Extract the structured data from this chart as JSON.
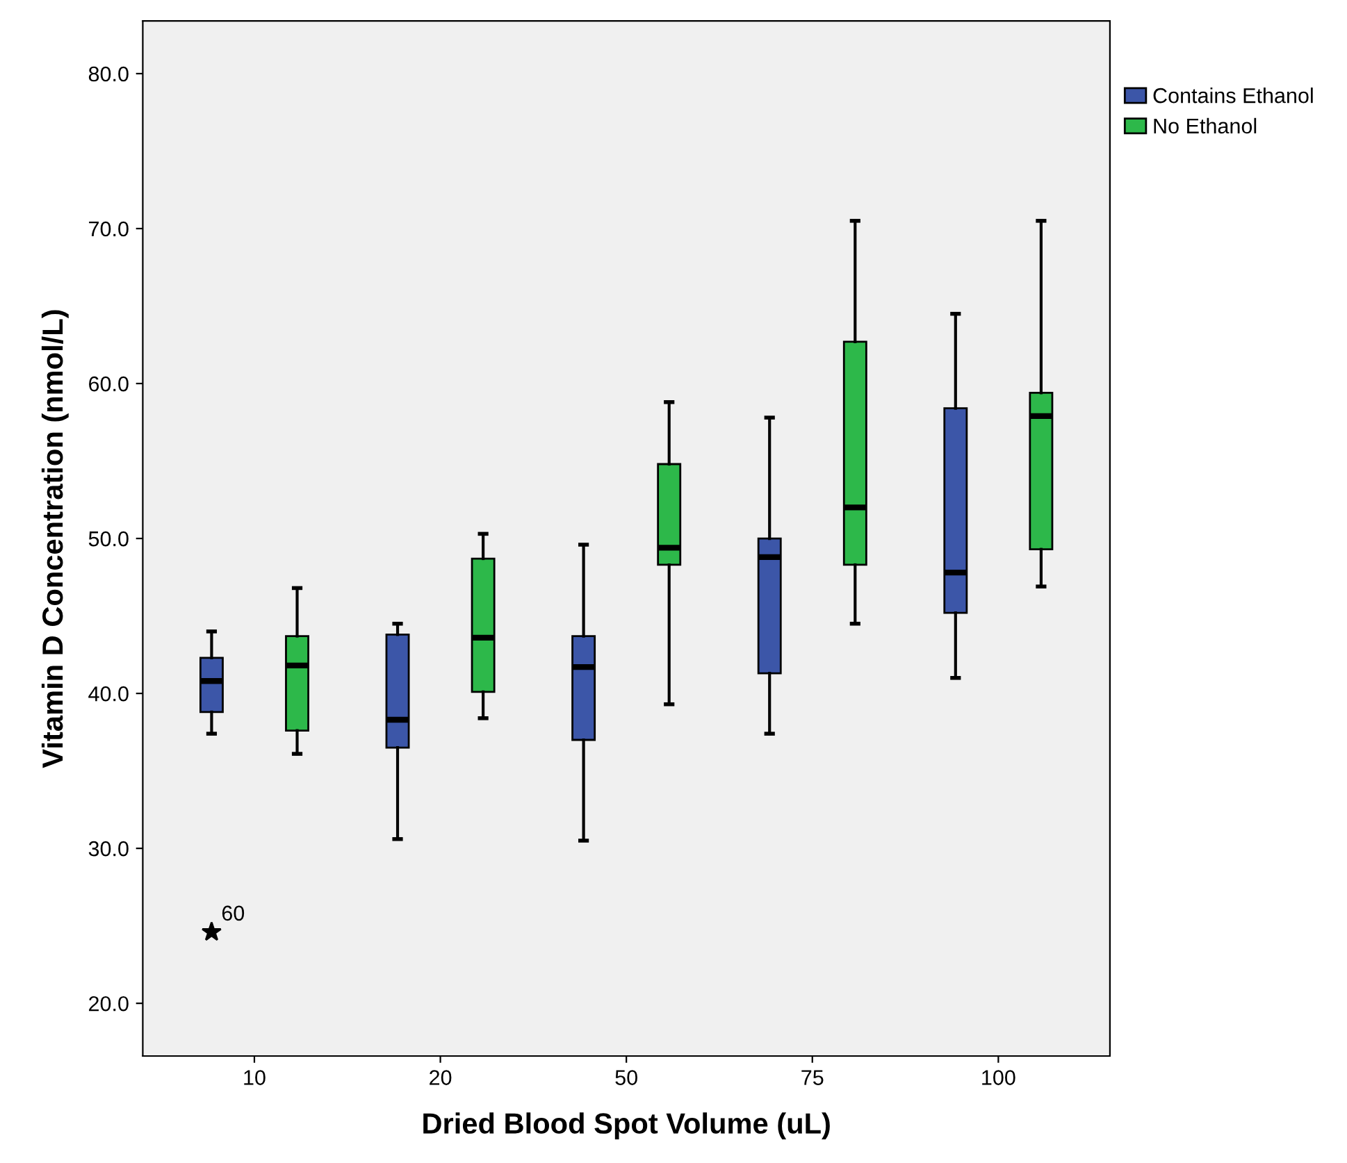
{
  "chart_data": {
    "type": "box",
    "xlabel": "Dried Blood Spot Volume (uL)",
    "ylabel": "Vitamin D Concentration (nmol/L)",
    "categories": [
      "10",
      "20",
      "50",
      "75",
      "100"
    ],
    "series": [
      {
        "name": "Contains Ethanol",
        "color": "#3c56a8",
        "boxes": [
          {
            "low": 37.4,
            "q1": 38.8,
            "median": 40.8,
            "q3": 42.3,
            "high": 44.0,
            "outliers": [
              24.6
            ]
          },
          {
            "low": 30.6,
            "q1": 36.5,
            "median": 38.3,
            "q3": 43.8,
            "high": 44.5
          },
          {
            "low": 30.5,
            "q1": 37.0,
            "median": 41.7,
            "q3": 43.7,
            "high": 49.6
          },
          {
            "low": 37.4,
            "q1": 41.3,
            "median": 48.8,
            "q3": 50.0,
            "high": 57.8
          },
          {
            "low": 41.0,
            "q1": 45.2,
            "median": 47.8,
            "q3": 58.4,
            "high": 64.5
          }
        ]
      },
      {
        "name": "No Ethanol",
        "color": "#2db84a",
        "boxes": [
          {
            "low": 36.1,
            "q1": 37.6,
            "median": 41.8,
            "q3": 43.7,
            "high": 46.8
          },
          {
            "low": 38.4,
            "q1": 40.1,
            "median": 43.6,
            "q3": 48.7,
            "high": 50.3
          },
          {
            "low": 39.3,
            "q1": 48.3,
            "median": 49.4,
            "q3": 54.8,
            "high": 58.8
          },
          {
            "low": 44.5,
            "q1": 48.3,
            "median": 52.0,
            "q3": 62.7,
            "high": 70.5
          },
          {
            "low": 46.9,
            "q1": 49.3,
            "median": 57.9,
            "q3": 59.4,
            "high": 70.5
          }
        ]
      }
    ],
    "annotations": [
      "60"
    ],
    "marker": "star",
    "ylim": [
      16.6,
      83.4
    ],
    "yticks": [
      {
        "value": 20,
        "label": "20.0"
      },
      {
        "value": 30,
        "label": "30.0"
      },
      {
        "value": 40,
        "label": "40.0"
      },
      {
        "value": 50,
        "label": "50.0"
      },
      {
        "value": 60,
        "label": "60.0"
      },
      {
        "value": 70,
        "label": "70.0"
      },
      {
        "value": 80,
        "label": "80.0"
      }
    ],
    "grid": false,
    "legend": "top right"
  }
}
